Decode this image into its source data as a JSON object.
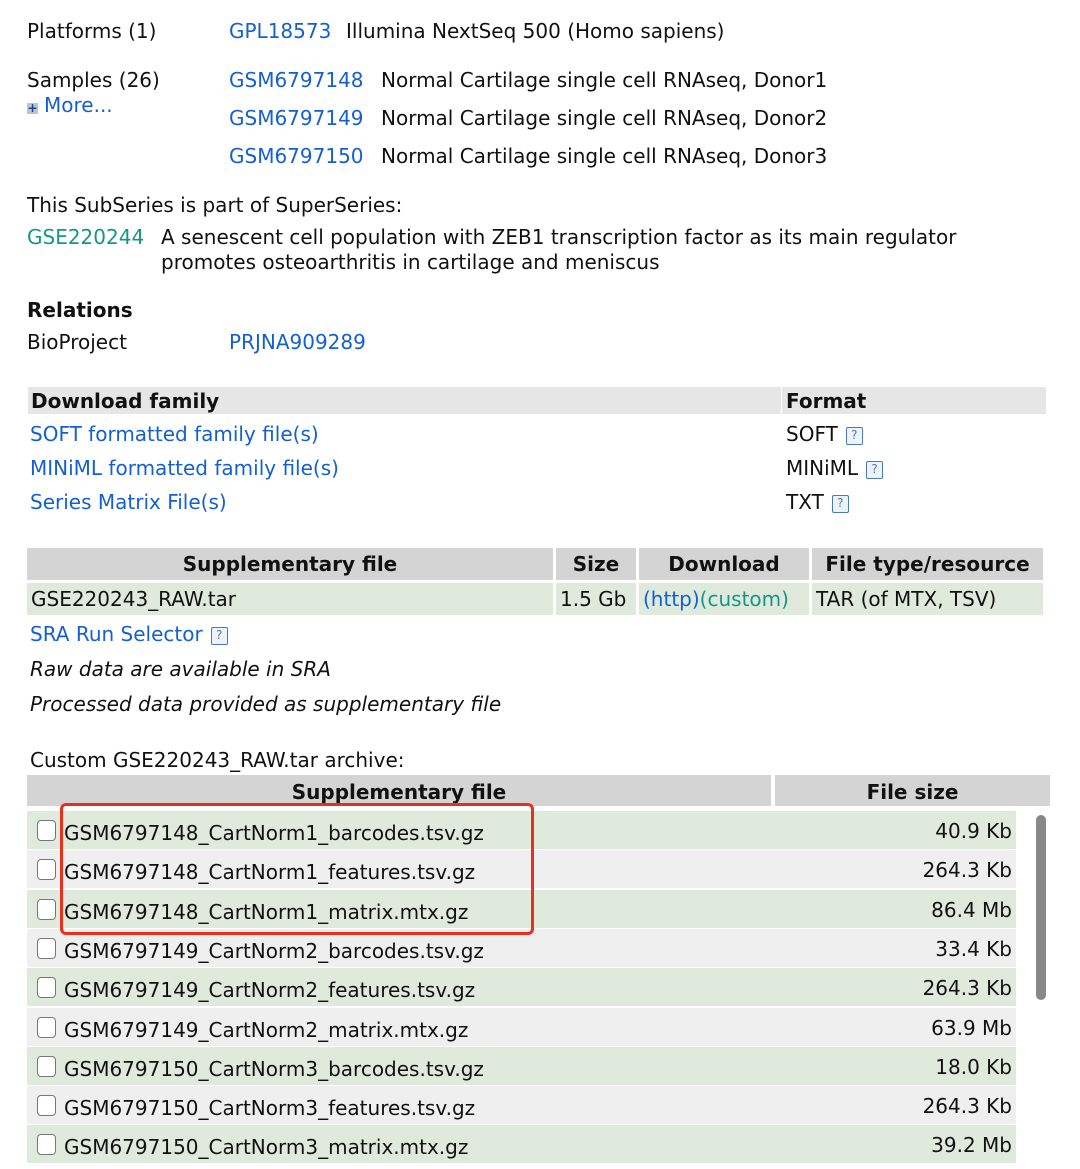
{
  "platforms": {
    "label": "Platforms (1)",
    "id": "GPL18573",
    "desc": "Illumina NextSeq 500 (Homo sapiens)"
  },
  "samples": {
    "label": "Samples (26)",
    "more": "More...",
    "items": [
      {
        "id": "GSM6797148",
        "desc": "Normal Cartilage single cell RNAseq, Donor1"
      },
      {
        "id": "GSM6797149",
        "desc": "Normal Cartilage single cell RNAseq, Donor2"
      },
      {
        "id": "GSM6797150",
        "desc": "Normal Cartilage single cell RNAseq, Donor3"
      }
    ]
  },
  "superseries": {
    "intro": "This SubSeries is part of SuperSeries:",
    "id": "GSE220244",
    "line1": "A senescent cell population with ZEB1 transcription factor as its main regulator",
    "line2": "promotes osteoarthritis in cartilage and meniscus"
  },
  "relations": {
    "heading": "Relations",
    "label": "BioProject",
    "id": "PRJNA909289"
  },
  "download_family": {
    "header": "Download family",
    "format_header": "Format",
    "rows": [
      {
        "label": "SOFT formatted family file(s)",
        "format": "SOFT"
      },
      {
        "label": "MINiML formatted family file(s)",
        "format": "MINiML"
      },
      {
        "label": "Series Matrix File(s)",
        "format": "TXT"
      }
    ]
  },
  "supp": {
    "headers": [
      "Supplementary file",
      "Size",
      "Download",
      "File type/resource"
    ],
    "row": {
      "file": "GSE220243_RAW.tar",
      "size": "1.5 Gb",
      "http": "(http)",
      "custom": "(custom)",
      "type": "TAR (of MTX, TSV)"
    },
    "sra": "SRA Run Selector",
    "note1": "Raw data are available in SRA",
    "note2": "Processed data provided as supplementary file"
  },
  "archive": {
    "title": "Custom GSE220243_RAW.tar archive:",
    "headers": [
      "Supplementary file",
      "File size"
    ],
    "files": [
      {
        "name": "GSM6797148_CartNorm1_barcodes.tsv.gz",
        "size": "40.9 Kb"
      },
      {
        "name": "GSM6797148_CartNorm1_features.tsv.gz",
        "size": "264.3 Kb"
      },
      {
        "name": "GSM6797148_CartNorm1_matrix.mtx.gz",
        "size": "86.4 Mb"
      },
      {
        "name": "GSM6797149_CartNorm2_barcodes.tsv.gz",
        "size": "33.4 Kb"
      },
      {
        "name": "GSM6797149_CartNorm2_features.tsv.gz",
        "size": "264.3 Kb"
      },
      {
        "name": "GSM6797149_CartNorm2_matrix.mtx.gz",
        "size": "63.9 Mb"
      },
      {
        "name": "GSM6797150_CartNorm3_barcodes.tsv.gz",
        "size": "18.0 Kb"
      },
      {
        "name": "GSM6797150_CartNorm3_features.tsv.gz",
        "size": "264.3 Kb"
      },
      {
        "name": "GSM6797150_CartNorm3_matrix.mtx.gz",
        "size": "39.2 Mb"
      }
    ]
  },
  "highlight_color": "#e8301c"
}
